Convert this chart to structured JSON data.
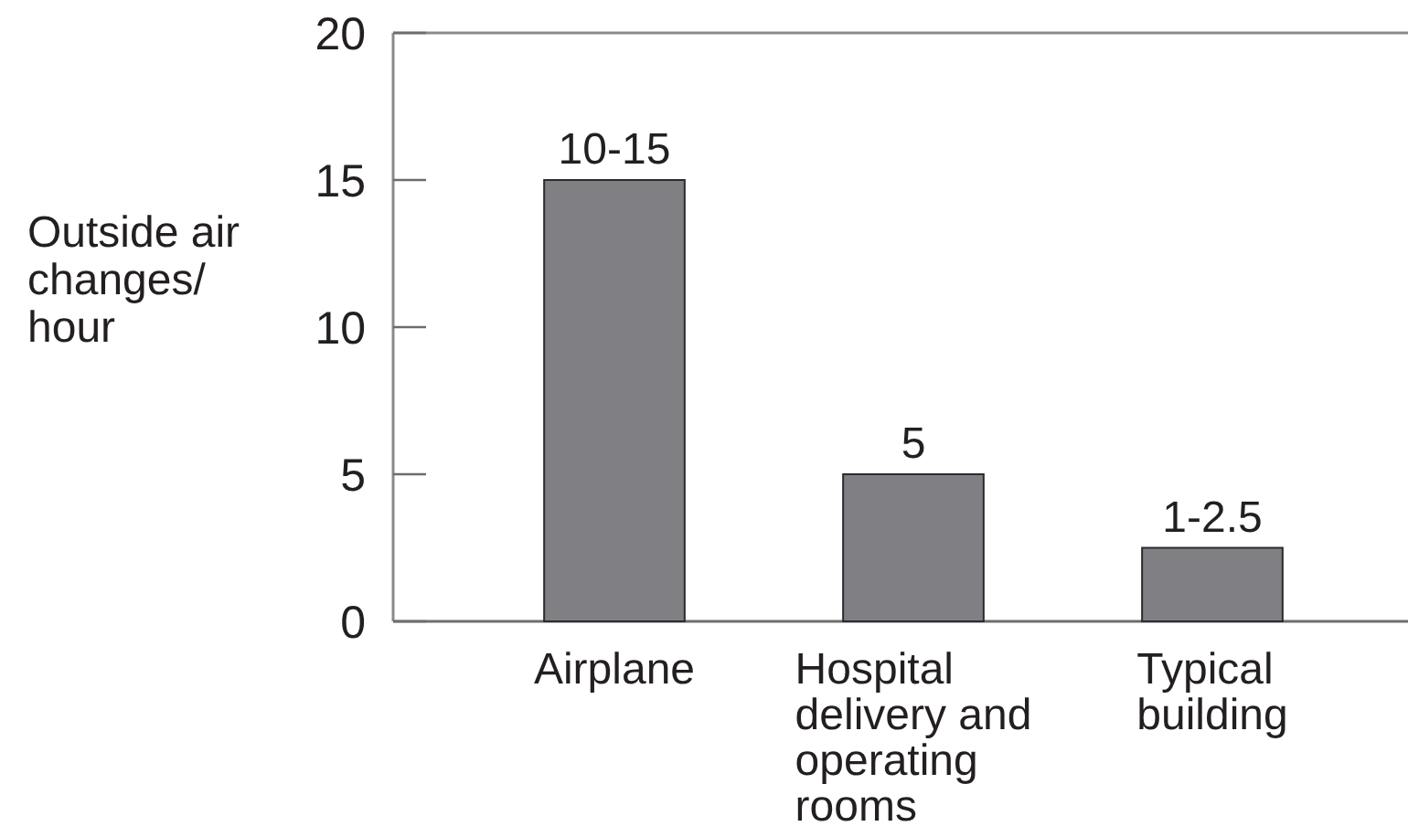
{
  "chart_data": {
    "type": "bar",
    "ylabel": "Outside air changes/ hour",
    "categories": [
      "Airplane",
      "Hospital delivery and operating rooms",
      "Typical building"
    ],
    "values": [
      15,
      5,
      2.5
    ],
    "value_labels": [
      "10-15",
      "5",
      "1-2.5"
    ],
    "color": "#808084",
    "ylim": [
      0,
      20
    ],
    "yticks": [
      0,
      5,
      10,
      15,
      20
    ]
  }
}
